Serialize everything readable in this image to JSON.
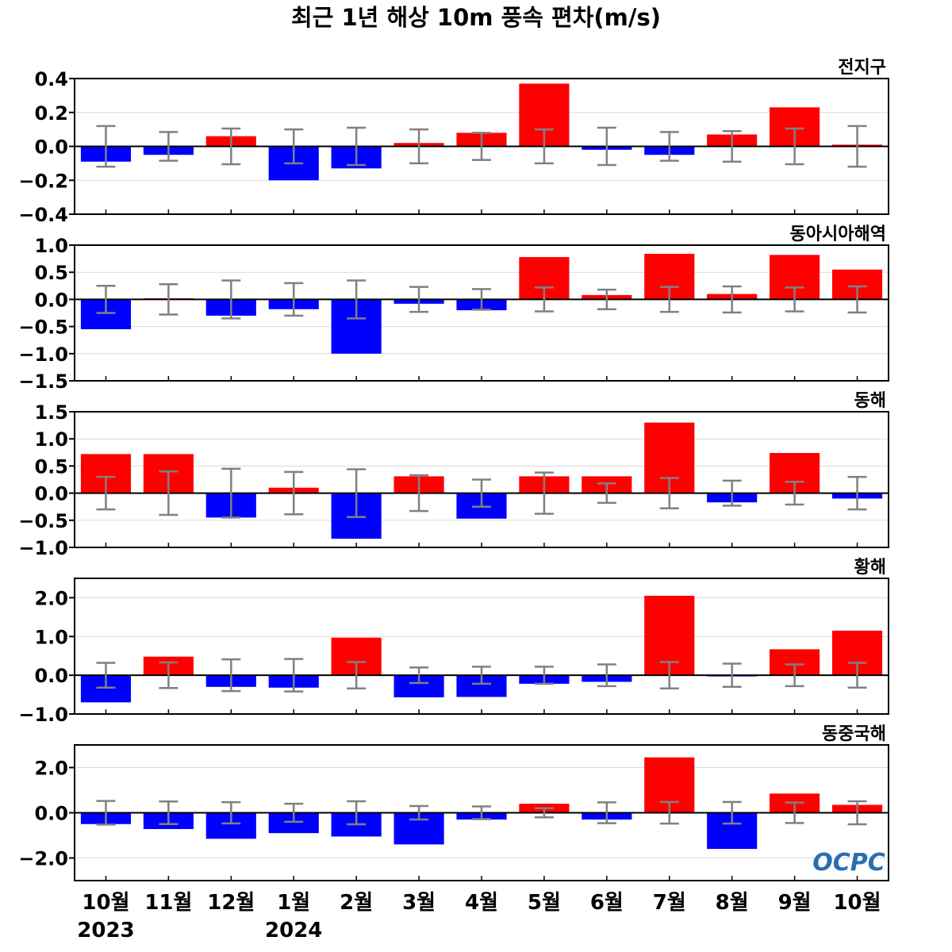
{
  "title": "최근 1년 해상 10m 풍속 편차(m/s)",
  "logo": "OCPC",
  "colors": {
    "positive": "#ff0000",
    "negative": "#0000ff",
    "errorbar": "#808080",
    "grid": "#d9d9d9",
    "zero_line": "#000000",
    "logo": "#2a6db5"
  },
  "chart_data": {
    "type": "bar",
    "categories": [
      "10월",
      "11월",
      "12월",
      "1월",
      "2월",
      "3월",
      "4월",
      "5월",
      "6월",
      "7월",
      "8월",
      "9월",
      "10월"
    ],
    "year_labels": [
      {
        "category_index": 0,
        "label": "2023"
      },
      {
        "category_index": 3,
        "label": "2024"
      }
    ],
    "grid": true,
    "panels": [
      {
        "name": "전지구",
        "ylim": [
          -0.4,
          0.4
        ],
        "yticks": [
          -0.4,
          -0.2,
          0.0,
          0.2,
          0.4
        ],
        "ytick_labels": [
          "−0.4",
          "−0.2",
          "0.0",
          "0.2",
          "0.4"
        ],
        "values": [
          -0.09,
          -0.05,
          0.06,
          -0.2,
          -0.13,
          0.02,
          0.08,
          0.37,
          -0.02,
          -0.05,
          0.07,
          0.23,
          0.01
        ],
        "error": [
          0.12,
          0.085,
          0.105,
          0.1,
          0.11,
          0.1,
          0.08,
          0.1,
          0.11,
          0.085,
          0.09,
          0.105,
          0.12
        ]
      },
      {
        "name": "동아시아해역",
        "ylim": [
          -1.5,
          1.0
        ],
        "yticks": [
          -1.5,
          -1.0,
          -0.5,
          0.0,
          0.5,
          1.0
        ],
        "ytick_labels": [
          "−1.5",
          "−1.0",
          "−0.5",
          "0.0",
          "0.5",
          "1.0"
        ],
        "values": [
          -0.55,
          0.02,
          -0.3,
          -0.18,
          -1.0,
          -0.08,
          -0.2,
          0.78,
          0.08,
          0.84,
          0.1,
          0.82,
          0.55
        ],
        "error": [
          0.25,
          0.28,
          0.35,
          0.3,
          0.35,
          0.23,
          0.19,
          0.22,
          0.18,
          0.23,
          0.24,
          0.22,
          0.24
        ]
      },
      {
        "name": "동해",
        "ylim": [
          -1.0,
          1.5
        ],
        "yticks": [
          -1.0,
          -0.5,
          0.0,
          0.5,
          1.0,
          1.5
        ],
        "ytick_labels": [
          "−1.0",
          "−0.5",
          "0.0",
          "0.5",
          "1.0",
          "1.5"
        ],
        "values": [
          0.72,
          0.72,
          -0.45,
          0.1,
          -0.84,
          0.31,
          -0.47,
          0.31,
          0.31,
          1.3,
          -0.17,
          0.74,
          -0.1
        ],
        "error": [
          0.3,
          0.4,
          0.45,
          0.39,
          0.44,
          0.33,
          0.25,
          0.38,
          0.18,
          0.28,
          0.23,
          0.21,
          0.3
        ]
      },
      {
        "name": "황해",
        "ylim": [
          -1.0,
          2.5
        ],
        "yticks": [
          -1.0,
          0.0,
          1.0,
          2.0
        ],
        "ytick_labels": [
          "−1.0",
          "0.0",
          "1.0",
          "2.0"
        ],
        "values": [
          -0.7,
          0.48,
          -0.3,
          -0.32,
          0.97,
          -0.57,
          -0.56,
          -0.22,
          -0.17,
          2.05,
          -0.03,
          0.67,
          1.15
        ],
        "error": [
          0.32,
          0.33,
          0.41,
          0.42,
          0.34,
          0.2,
          0.22,
          0.22,
          0.28,
          0.34,
          0.3,
          0.28,
          0.32
        ]
      },
      {
        "name": "동중국해",
        "ylim": [
          -3.0,
          3.0
        ],
        "yticks": [
          -2.0,
          0.0,
          2.0
        ],
        "ytick_labels": [
          "−2.0",
          "0.0",
          "2.0"
        ],
        "values": [
          -0.5,
          -0.72,
          -1.15,
          -0.9,
          -1.05,
          -1.4,
          -0.3,
          0.4,
          -0.3,
          2.45,
          -1.6,
          0.85,
          0.35
        ],
        "error": [
          0.52,
          0.5,
          0.47,
          0.4,
          0.51,
          0.3,
          0.28,
          0.2,
          0.46,
          0.48,
          0.48,
          0.45,
          0.51
        ]
      }
    ]
  }
}
